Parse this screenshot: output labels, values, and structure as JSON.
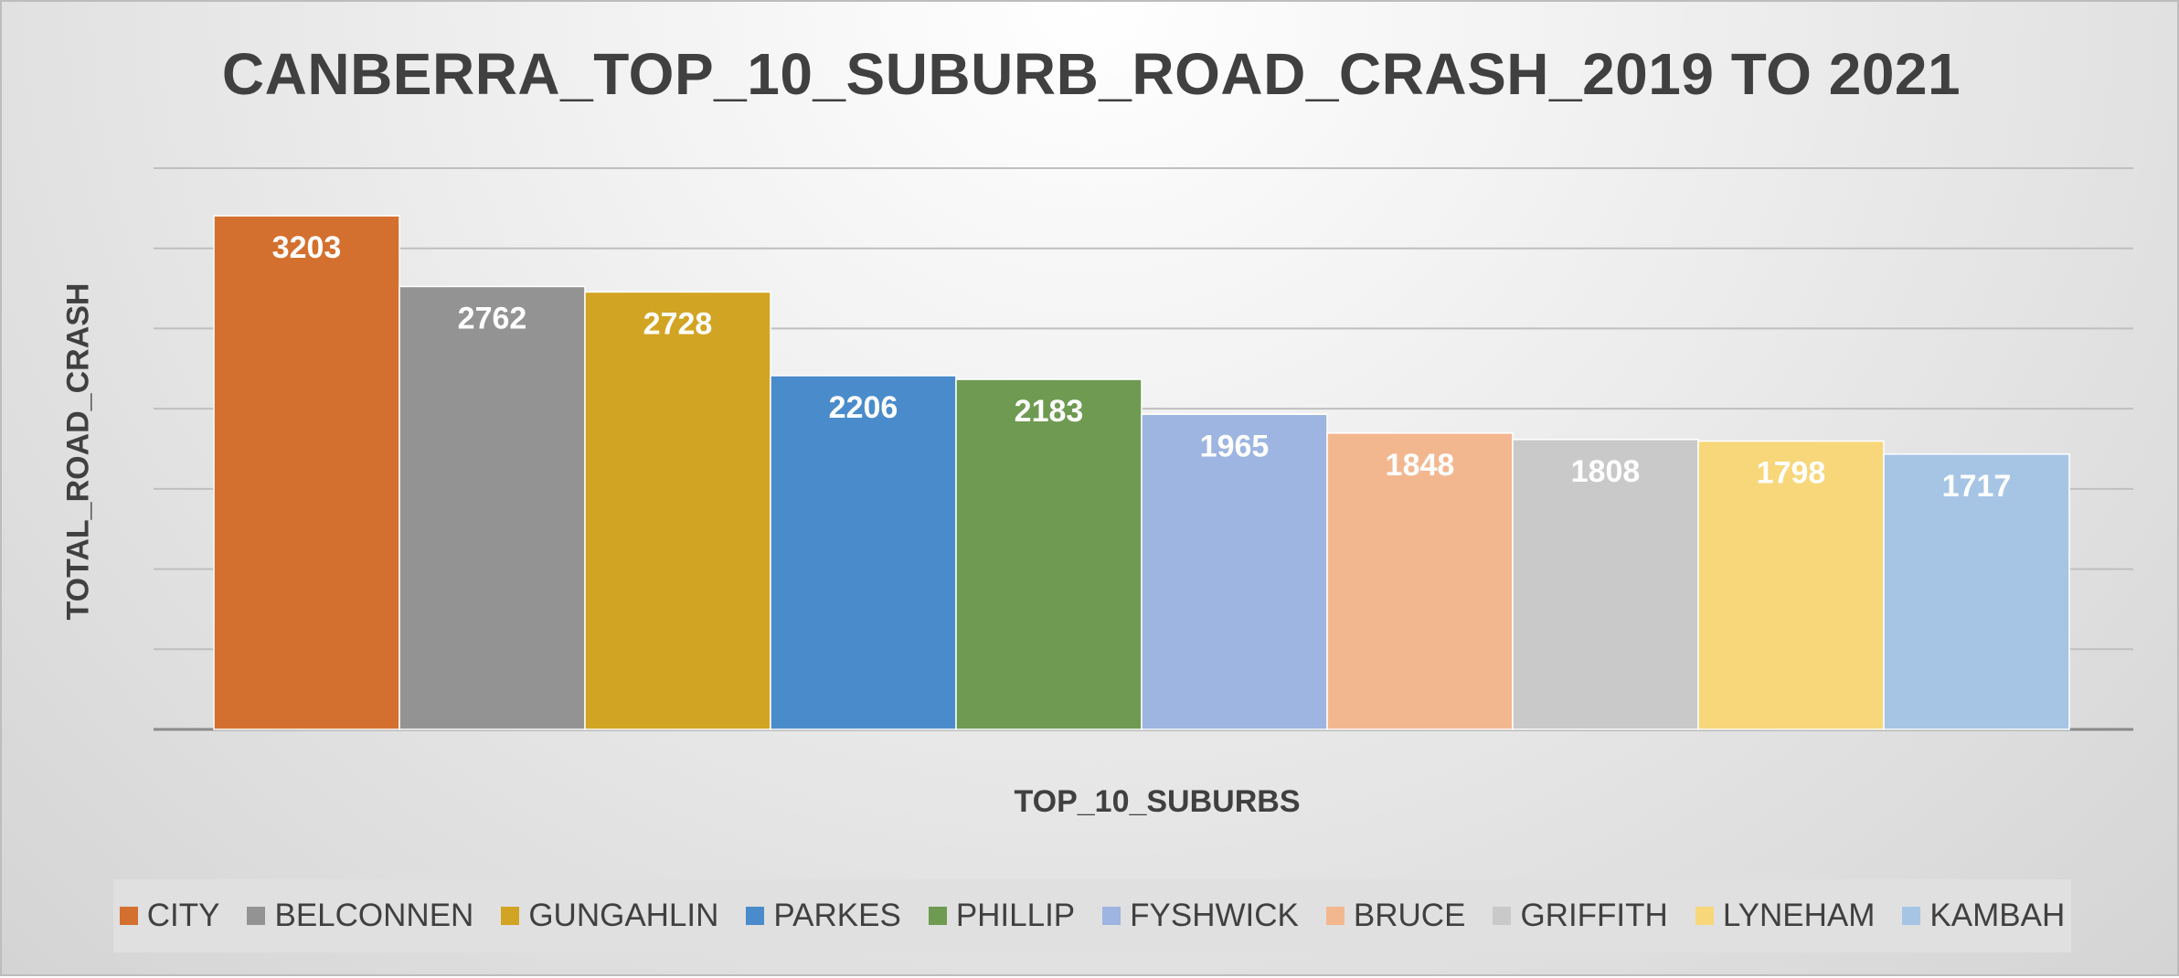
{
  "chart_data": {
    "type": "bar",
    "title": "CANBERRA_TOP_10_SUBURB_ROAD_CRASH_2019 TO 2021",
    "xlabel": "TOP_10_SUBURBS",
    "ylabel": "TOTAL_ROAD_CRASH",
    "ylim": [
      0,
      3500
    ],
    "grid": true,
    "legend": "bottom",
    "series": [
      {
        "name": "CITY",
        "values": [
          3203
        ],
        "color": "#D4702F"
      },
      {
        "name": "BELCONNEN",
        "values": [
          2762
        ],
        "color": "#939393"
      },
      {
        "name": "GUNGAHLIN",
        "values": [
          2728
        ],
        "color": "#D2A423"
      },
      {
        "name": "PARKES",
        "values": [
          2206
        ],
        "color": "#4A8CCB"
      },
      {
        "name": "PHILLIP",
        "values": [
          2183
        ],
        "color": "#6E9A52"
      },
      {
        "name": "FYSHWICK",
        "values": [
          1965
        ],
        "color": "#9DB5E0"
      },
      {
        "name": "BRUCE",
        "values": [
          1848
        ],
        "color": "#F3B790"
      },
      {
        "name": "GRIFFITH",
        "values": [
          1808
        ],
        "color": "#C9C9C9"
      },
      {
        "name": "LYNEHAM",
        "values": [
          1798
        ],
        "color": "#F7D77A"
      },
      {
        "name": "KAMBAH",
        "values": [
          1717
        ],
        "color": "#A6C5E5"
      }
    ]
  }
}
